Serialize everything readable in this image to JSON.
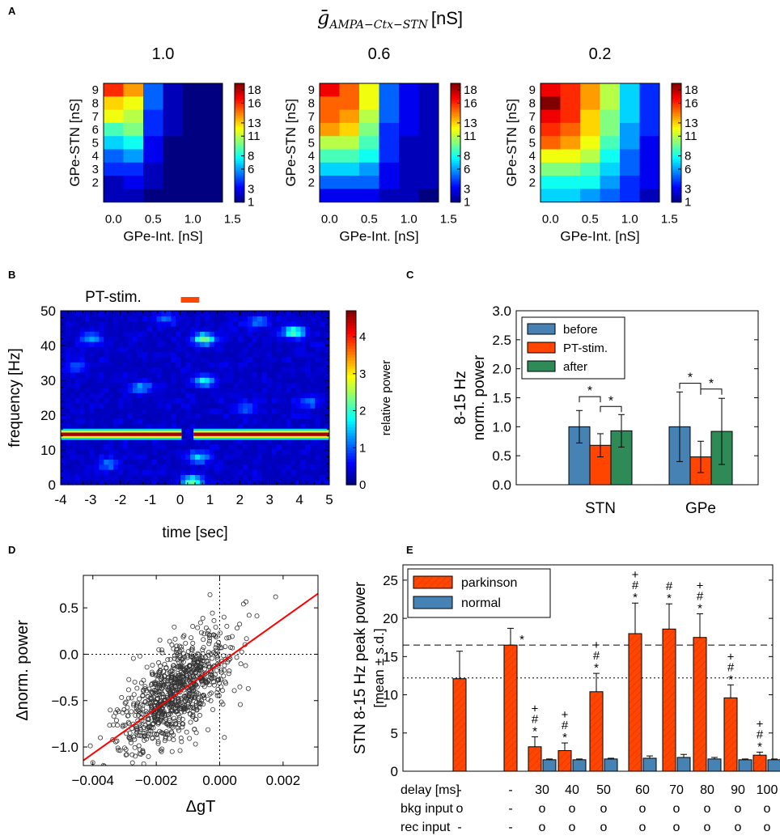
{
  "figure": {
    "panel_letters": [
      "A",
      "B",
      "C",
      "D",
      "E"
    ],
    "panel_a_title": "ḡ",
    "panel_a_title_sub": "AMPA−Ctx−STN",
    "panel_a_title_unit": "[nS]"
  },
  "colors": {
    "before": "#4682b4",
    "pt_stim": "#ff4500",
    "after": "#2e8b57",
    "regression": "#ff0000",
    "parkinson": "#ff4500",
    "normal": "#4682b4"
  },
  "chart_data": [
    {
      "panel": "A",
      "type": "heatmap",
      "title": "ḡAMPA−Ctx−STN [nS]",
      "ylabel": "GPe-STN [nS]",
      "xlabel": "GPe-Int. [nS]",
      "y_ticks": [
        "2",
        "3",
        "4",
        "5",
        "6",
        "7",
        "8",
        "9"
      ],
      "x_ticks": [
        "0.0",
        "0.5",
        "1.0",
        "1.5"
      ],
      "colorbar_ticks": [
        "1",
        "3",
        "6",
        "8",
        "11",
        "13",
        "16",
        "18"
      ],
      "colorbar_range": [
        1,
        19
      ],
      "subplots": [
        {
          "title": "1.0",
          "values": [
            [
              16,
              14,
              5,
              2,
              1,
              1
            ],
            [
              13,
              12,
              5,
              2,
              1,
              1
            ],
            [
              12,
              11,
              4,
              2,
              1,
              1
            ],
            [
              9,
              10,
              4,
              2,
              1,
              1
            ],
            [
              7,
              8,
              3,
              1,
              1,
              1
            ],
            [
              5,
              6,
              3,
              1,
              1,
              1
            ],
            [
              4,
              4,
              2,
              1,
              1,
              1
            ],
            [
              2,
              3,
              2,
              1,
              1,
              1
            ],
            [
              2,
              2,
              1,
              1,
              1,
              1
            ]
          ]
        },
        {
          "title": "0.6",
          "values": [
            [
              17,
              15,
              12,
              5,
              3,
              2
            ],
            [
              15,
              15,
              12,
              5,
              3,
              2
            ],
            [
              15,
              14,
              11,
              5,
              3,
              2
            ],
            [
              14,
              13,
              10,
              4,
              3,
              2
            ],
            [
              11,
              11,
              9,
              4,
              2,
              2
            ],
            [
              9,
              9,
              8,
              4,
              2,
              2
            ],
            [
              7,
              7,
              6,
              3,
              2,
              2
            ],
            [
              5,
              5,
              5,
              3,
              2,
              2
            ],
            [
              3,
              3,
              3,
              2,
              2,
              1
            ]
          ]
        },
        {
          "title": "0.2",
          "values": [
            [
              17,
              16,
              14,
              11,
              7,
              4
            ],
            [
              19,
              16,
              14,
              11,
              7,
              4
            ],
            [
              17,
              16,
              13,
              10,
              7,
              4
            ],
            [
              16,
              15,
              13,
              10,
              6,
              4
            ],
            [
              15,
              14,
              12,
              9,
              6,
              3
            ],
            [
              12,
              12,
              11,
              8,
              5,
              3
            ],
            [
              10,
              10,
              9,
              7,
              5,
              3
            ],
            [
              8,
              8,
              8,
              6,
              4,
              3
            ],
            [
              7,
              7,
              6,
              5,
              4,
              2
            ]
          ]
        }
      ]
    },
    {
      "panel": "B",
      "type": "heatmap",
      "xlabel": "time [sec]",
      "ylabel": "frequency [Hz]",
      "x_ticks": [
        "-4",
        "-3",
        "-2",
        "-1",
        "0",
        "1",
        "2",
        "3",
        "4",
        "5"
      ],
      "y_ticks": [
        "0",
        "10",
        "20",
        "30",
        "40",
        "50"
      ],
      "xlim": [
        -4,
        5
      ],
      "ylim": [
        0,
        50
      ],
      "colorbar_label": "relative power",
      "colorbar_ticks": [
        "0",
        "1",
        "2",
        "3",
        "4"
      ],
      "colorbar_range": [
        0,
        4.7
      ],
      "stim_label": "PT-stim.",
      "stim_interval": [
        0,
        0.4
      ],
      "ridge_frequency": 14.5,
      "ridge_power": 4.5,
      "ridge_gap": [
        0.05,
        0.45
      ],
      "hotspots": [
        {
          "t": 0.8,
          "f": 42,
          "power": 2.0
        },
        {
          "t": 3.8,
          "f": 44,
          "power": 2.0
        },
        {
          "t": 0.8,
          "f": 30,
          "power": 1.5
        },
        {
          "t": 0.4,
          "f": 1,
          "power": 2.0
        },
        {
          "t": 0.6,
          "f": 8,
          "power": 1.2
        },
        {
          "t": -3.0,
          "f": 42,
          "power": 1.0
        },
        {
          "t": -1.3,
          "f": 28,
          "power": 1.0
        },
        {
          "t": 2.6,
          "f": 47,
          "power": 0.9
        },
        {
          "t": -2.4,
          "f": 6,
          "power": 0.8
        },
        {
          "t": 2.2,
          "f": 22,
          "power": 0.8
        },
        {
          "t": -3.5,
          "f": 34,
          "power": 0.7
        },
        {
          "t": 4.3,
          "f": 24,
          "power": 0.8
        },
        {
          "t": -0.5,
          "f": 48,
          "power": 0.8
        }
      ]
    },
    {
      "panel": "C",
      "type": "bar",
      "ylabel_lines": [
        "8-15 Hz",
        "norm. power"
      ],
      "categories": [
        "STN",
        "GPe"
      ],
      "ylim": [
        0,
        3.0
      ],
      "y_ticks": [
        "0.0",
        "0.5",
        "1.0",
        "1.5",
        "2.0",
        "2.5",
        "3.0"
      ],
      "series": [
        {
          "name": "before",
          "values": [
            1.0,
            1.0
          ],
          "errors": [
            0.28,
            0.6
          ]
        },
        {
          "name": "PT-stim.",
          "values": [
            0.68,
            0.48
          ],
          "errors": [
            0.2,
            0.27
          ]
        },
        {
          "name": "after",
          "values": [
            0.93,
            0.92
          ],
          "errors": [
            0.28,
            0.57
          ]
        }
      ],
      "significance": [
        {
          "group": 0,
          "pair": [
            0,
            1
          ],
          "y": 1.52,
          "label": "*"
        },
        {
          "group": 0,
          "pair": [
            1,
            2
          ],
          "y": 1.35,
          "label": "*"
        },
        {
          "group": 1,
          "pair": [
            0,
            1
          ],
          "y": 1.75,
          "label": "*"
        },
        {
          "group": 1,
          "pair": [
            1,
            2
          ],
          "y": 1.65,
          "label": "*"
        }
      ],
      "legend_position": "top-left"
    },
    {
      "panel": "D",
      "type": "scatter",
      "xlabel": "ΔgT",
      "ylabel": "Δnorm. power",
      "xlim": [
        -0.0043,
        0.0031
      ],
      "ylim": [
        -1.2,
        0.85
      ],
      "x_ticks": [
        "−0.004",
        "−0.002",
        "0.000",
        "0.002"
      ],
      "x_tick_values": [
        -0.004,
        -0.002,
        0.0,
        0.002
      ],
      "y_ticks": [
        "−1.0",
        "−0.5",
        "0.0",
        "0.5"
      ],
      "y_tick_values": [
        -1.0,
        -0.5,
        0.0,
        0.5
      ],
      "regression": {
        "slope": 243,
        "intercept": -0.1
      },
      "n_points": 900,
      "cloud": {
        "x_center": -0.0014,
        "x_sd": 0.0009,
        "y_sd": 0.25
      }
    },
    {
      "panel": "E",
      "type": "bar",
      "ylabel_lines": [
        "STN 8-15 Hz peak power",
        "[mean ± s.d.]"
      ],
      "ylim": [
        0,
        27
      ],
      "y_ticks": [
        "0",
        "5",
        "10",
        "15",
        "20",
        "25"
      ],
      "legend_position": "top-left",
      "reference_lines": {
        "dashed": 16.5,
        "dotted": 12.2
      },
      "row_labels": [
        "delay [ms]",
        "bkg input",
        "rec input"
      ],
      "conditions": [
        {
          "delay": "-",
          "bkg": "o",
          "rec": "-",
          "parkinson": 12.1,
          "pk_err": 3.6,
          "normal": null,
          "nm_err": null,
          "marks": ""
        },
        {
          "delay": "-",
          "bkg": "-",
          "rec": "-",
          "parkinson": 16.5,
          "pk_err": 2.2,
          "normal": null,
          "nm_err": null,
          "marks": "*"
        },
        {
          "delay": "30",
          "bkg": "o",
          "rec": "o",
          "parkinson": 3.2,
          "pk_err": 1.3,
          "normal": 1.5,
          "nm_err": 0.1,
          "marks": "+\n#\n*"
        },
        {
          "delay": "40",
          "bkg": "o",
          "rec": "o",
          "parkinson": 2.7,
          "pk_err": 1.0,
          "normal": 1.5,
          "nm_err": 0.1,
          "marks": "+\n#\n*"
        },
        {
          "delay": "50",
          "bkg": "o",
          "rec": "o",
          "parkinson": 10.4,
          "pk_err": 2.4,
          "normal": 1.6,
          "nm_err": 0.1,
          "marks": "+\n#\n*"
        },
        {
          "delay": "60",
          "bkg": "o",
          "rec": "o",
          "parkinson": 18.0,
          "pk_err": 4.0,
          "normal": 1.7,
          "nm_err": 0.3,
          "marks": "+\n#\n*"
        },
        {
          "delay": "70",
          "bkg": "o",
          "rec": "o",
          "parkinson": 18.6,
          "pk_err": 3.3,
          "normal": 1.8,
          "nm_err": 0.4,
          "marks": "#\n*"
        },
        {
          "delay": "80",
          "bkg": "o",
          "rec": "o",
          "parkinson": 17.5,
          "pk_err": 3.1,
          "normal": 1.6,
          "nm_err": 0.2,
          "marks": "+\n#\n*"
        },
        {
          "delay": "90",
          "bkg": "o",
          "rec": "o",
          "parkinson": 9.6,
          "pk_err": 1.7,
          "normal": 1.5,
          "nm_err": 0.1,
          "marks": "+\n#\n*"
        },
        {
          "delay": "100",
          "bkg": "o",
          "rec": "o",
          "parkinson": 2.1,
          "pk_err": 0.4,
          "normal": 1.5,
          "nm_err": 0.1,
          "marks": "+\n#\n*"
        }
      ],
      "series_names": [
        "parkinson",
        "normal"
      ]
    }
  ]
}
